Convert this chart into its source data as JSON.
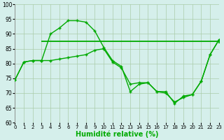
{
  "xlabel": "Humidité relative (%)",
  "background_color": "#d5efeb",
  "grid_color": "#aaccaa",
  "line_color": "#00aa00",
  "ylim": [
    60,
    100
  ],
  "xlim": [
    0,
    23
  ],
  "yticks": [
    60,
    65,
    70,
    75,
    80,
    85,
    90,
    95,
    100
  ],
  "xticks": [
    0,
    1,
    2,
    3,
    4,
    5,
    6,
    7,
    8,
    9,
    10,
    11,
    12,
    13,
    14,
    15,
    16,
    17,
    18,
    19,
    20,
    21,
    22,
    23
  ],
  "curve_peak_x": [
    0,
    1,
    2,
    3,
    4,
    5,
    6,
    7,
    8,
    9,
    10,
    11,
    12,
    13,
    14,
    15,
    16,
    17,
    18,
    19,
    20,
    21,
    22,
    23
  ],
  "curve_peak_y": [
    74.5,
    80.5,
    81.0,
    81.0,
    90.0,
    92.0,
    94.5,
    94.5,
    94.0,
    91.0,
    85.5,
    81.0,
    79.0,
    70.5,
    73.0,
    73.5,
    70.5,
    70.5,
    66.5,
    69.0,
    69.5,
    74.0,
    83.0,
    88.0
  ],
  "curve_decline_x": [
    0,
    1,
    2,
    3,
    4,
    5,
    6,
    7,
    8,
    9,
    10,
    11,
    12,
    13,
    14,
    15,
    16,
    17,
    18,
    19,
    20,
    21,
    22,
    23
  ],
  "curve_decline_y": [
    74.5,
    80.5,
    81.0,
    81.0,
    81.0,
    81.5,
    82.0,
    82.5,
    83.0,
    84.5,
    85.0,
    80.5,
    78.5,
    73.0,
    73.5,
    73.5,
    70.5,
    70.0,
    67.0,
    68.5,
    69.5,
    74.0,
    83.0,
    88.0
  ],
  "hline_y": 87.5,
  "hline_x_start": 3.0,
  "hline_x_end": 23.0
}
